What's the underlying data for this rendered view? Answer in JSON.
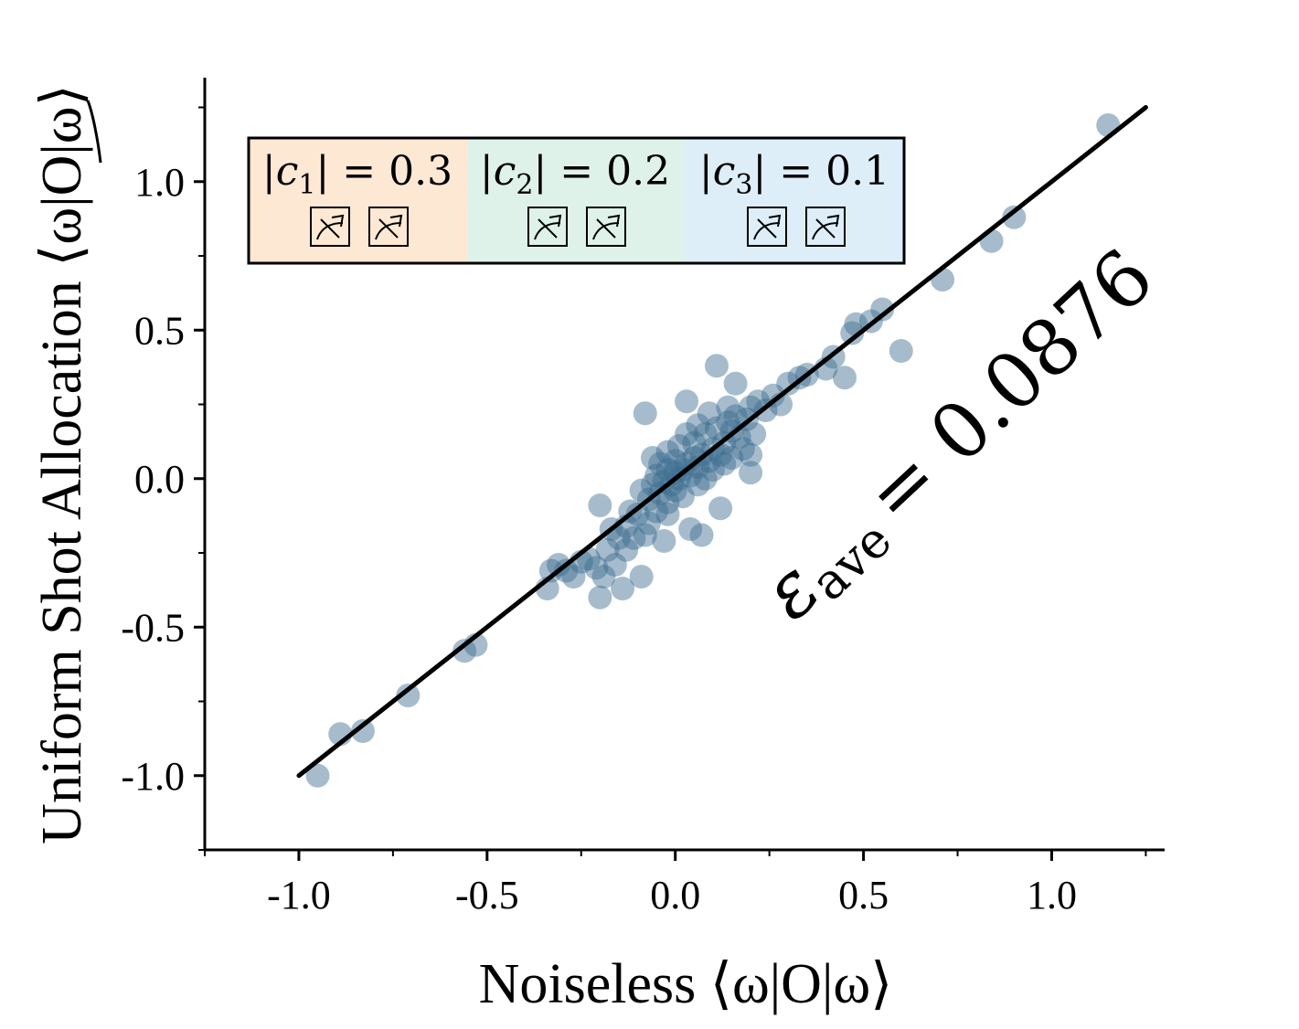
{
  "chart_data": {
    "type": "scatter",
    "xlabel": "Noiseless ⟨ω|O|ω⟩",
    "ylabel": "Uniform Shot Allocation ⟨ω|O|ω⟩",
    "xlim": [
      -1.25,
      1.3
    ],
    "ylim": [
      -1.25,
      1.35
    ],
    "xticks": [
      -1.0,
      -0.5,
      0.0,
      0.5,
      1.0
    ],
    "xtick_labels": [
      "-1.0",
      "-0.5",
      "0.0",
      "0.5",
      "1.0"
    ],
    "yticks": [
      -1.0,
      -0.5,
      0.0,
      0.5,
      1.0
    ],
    "ytick_labels": [
      "-1.0",
      "-0.5",
      "0.0",
      "0.5",
      "1.0"
    ],
    "grid": false,
    "marker_color": "#3a6a8e",
    "line_color": "#000000",
    "fit_line": {
      "x": [
        -1.0,
        1.25
      ],
      "y": [
        -1.0,
        1.25
      ]
    },
    "annotation": {
      "symbol": "ε",
      "subscript": "ave",
      "value_text": "= 0.0876",
      "value": 0.0876
    },
    "legend": {
      "position": "top-left",
      "items": [
        {
          "text": "|c",
          "sub": "1",
          "value": "| = 0.3",
          "color": "#fde8d4"
        },
        {
          "text": "|c",
          "sub": "2",
          "value": "| = 0.2",
          "color": "#dff2ea"
        },
        {
          "text": "|c",
          "sub": "3",
          "value": "| = 0.1",
          "color": "#ddeef8"
        }
      ],
      "icon": "measurement-meter-icon"
    },
    "points": [
      [
        -0.95,
        -1.0
      ],
      [
        -0.89,
        -0.86
      ],
      [
        -0.83,
        -0.85
      ],
      [
        -0.71,
        -0.73
      ],
      [
        -0.56,
        -0.58
      ],
      [
        -0.53,
        -0.56
      ],
      [
        -0.34,
        -0.37
      ],
      [
        -0.33,
        -0.31
      ],
      [
        -0.31,
        -0.29
      ],
      [
        -0.29,
        -0.31
      ],
      [
        -0.27,
        -0.33
      ],
      [
        -0.25,
        -0.28
      ],
      [
        -0.23,
        -0.27
      ],
      [
        -0.21,
        -0.3
      ],
      [
        -0.2,
        -0.4
      ],
      [
        -0.19,
        -0.33
      ],
      [
        -0.18,
        -0.24
      ],
      [
        -0.16,
        -0.29
      ],
      [
        -0.14,
        -0.37
      ],
      [
        -0.09,
        -0.33
      ],
      [
        -0.2,
        -0.09
      ],
      [
        -0.17,
        -0.17
      ],
      [
        -0.15,
        -0.2
      ],
      [
        -0.13,
        -0.16
      ],
      [
        -0.12,
        -0.11
      ],
      [
        -0.11,
        -0.2
      ],
      [
        -0.1,
        -0.12
      ],
      [
        -0.09,
        -0.04
      ],
      [
        -0.08,
        0.22
      ],
      [
        -0.07,
        -0.07
      ],
      [
        -0.07,
        -0.15
      ],
      [
        -0.06,
        0.07
      ],
      [
        -0.06,
        -0.02
      ],
      [
        -0.05,
        0.01
      ],
      [
        -0.05,
        -0.11
      ],
      [
        -0.04,
        0.05
      ],
      [
        -0.04,
        -0.05
      ],
      [
        -0.03,
        -0.01
      ],
      [
        -0.03,
        -0.21
      ],
      [
        -0.02,
        0.09
      ],
      [
        -0.02,
        0.03
      ],
      [
        -0.02,
        -0.08
      ],
      [
        -0.01,
        -0.02
      ],
      [
        0.0,
        0.02
      ],
      [
        0.0,
        0.06
      ],
      [
        0.0,
        -0.04
      ],
      [
        0.01,
        0.0
      ],
      [
        0.01,
        0.11
      ],
      [
        0.02,
        0.03
      ],
      [
        0.02,
        -0.06
      ],
      [
        0.03,
        0.05
      ],
      [
        0.03,
        0.26
      ],
      [
        0.04,
        -0.17
      ],
      [
        0.04,
        0.01
      ],
      [
        0.05,
        0.07
      ],
      [
        0.05,
        0.12
      ],
      [
        0.06,
        -0.02
      ],
      [
        0.06,
        0.04
      ],
      [
        0.07,
        0.08
      ],
      [
        0.07,
        -0.19
      ],
      [
        0.08,
        0.0
      ],
      [
        0.08,
        0.15
      ],
      [
        0.09,
        0.06
      ],
      [
        0.09,
        0.22
      ],
      [
        0.1,
        0.1
      ],
      [
        0.1,
        0.03
      ],
      [
        0.11,
        0.17
      ],
      [
        0.11,
        0.38
      ],
      [
        0.12,
        0.08
      ],
      [
        0.13,
        0.12
      ],
      [
        0.13,
        0.05
      ],
      [
        0.14,
        0.19
      ],
      [
        0.15,
        0.16
      ],
      [
        0.15,
        0.07
      ],
      [
        0.16,
        0.21
      ],
      [
        0.16,
        0.32
      ],
      [
        0.17,
        0.14
      ],
      [
        0.18,
        0.1
      ],
      [
        0.19,
        0.2
      ],
      [
        0.2,
        0.24
      ],
      [
        0.2,
        0.08
      ],
      [
        0.21,
        0.15
      ],
      [
        0.2,
        0.02
      ],
      [
        0.22,
        0.26
      ],
      [
        0.24,
        0.23
      ],
      [
        0.26,
        0.28
      ],
      [
        0.28,
        0.25
      ],
      [
        0.3,
        0.32
      ],
      [
        0.33,
        0.34
      ],
      [
        0.35,
        0.35
      ],
      [
        0.4,
        0.37
      ],
      [
        0.42,
        0.41
      ],
      [
        0.45,
        0.34
      ],
      [
        0.47,
        0.49
      ],
      [
        0.48,
        0.52
      ],
      [
        0.52,
        0.53
      ],
      [
        0.55,
        0.57
      ],
      [
        0.6,
        0.43
      ],
      [
        0.71,
        0.67
      ],
      [
        0.84,
        0.8
      ],
      [
        0.9,
        0.88
      ],
      [
        1.15,
        1.19
      ],
      [
        -0.02,
        -0.12
      ],
      [
        0.12,
        -0.1
      ],
      [
        -0.13,
        -0.24
      ],
      [
        0.03,
        0.15
      ],
      [
        -0.08,
        -0.19
      ],
      [
        0.06,
        0.18
      ],
      [
        0.14,
        0.24
      ]
    ]
  }
}
